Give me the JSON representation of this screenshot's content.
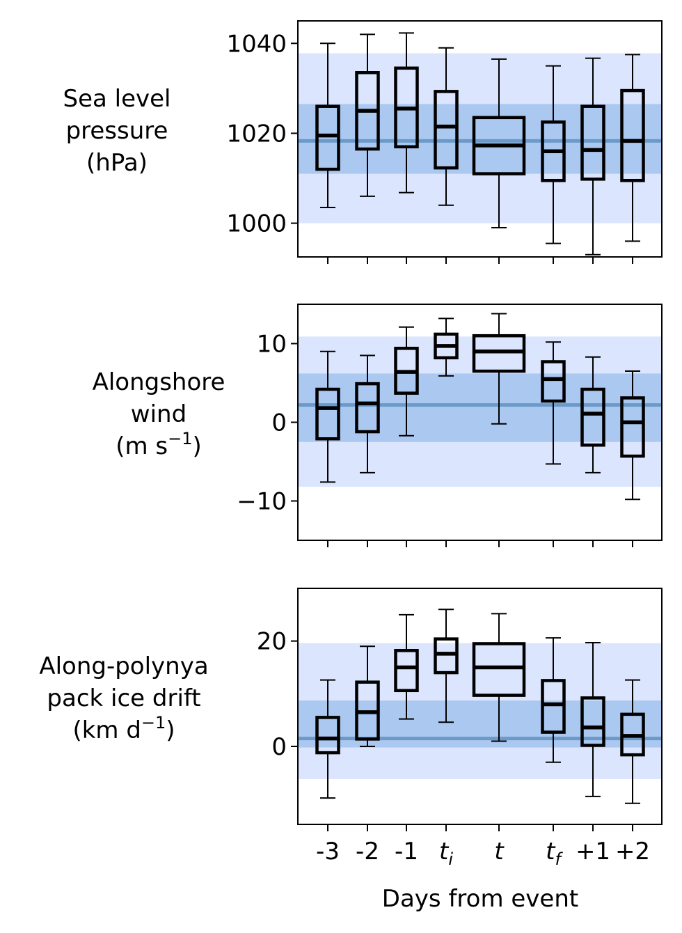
{
  "figure": {
    "xlabel": "Days from event",
    "categories": [
      "-3",
      "-2",
      "-1",
      "t_i",
      "t",
      "t_f",
      "+1",
      "+2"
    ],
    "category_labels": [
      {
        "main": "-3",
        "sub": ""
      },
      {
        "main": "-2",
        "sub": ""
      },
      {
        "main": "-1",
        "sub": ""
      },
      {
        "main": "t",
        "sub": "i"
      },
      {
        "main": "t",
        "sub": ""
      },
      {
        "main": "t",
        "sub": "f"
      },
      {
        "main": "+1",
        "sub": ""
      },
      {
        "main": "+2",
        "sub": ""
      }
    ],
    "colors": {
      "outer_band": "#dbe5fd",
      "inner_band": "#abc8f0",
      "median_line": "#6b9ac8",
      "box": "#000000"
    }
  },
  "chart_data": [
    {
      "type": "box",
      "ylabel_lines": [
        {
          "text": "Sea level",
          "sup": ""
        },
        {
          "text": "pressure",
          "sup": ""
        },
        {
          "text": "(hPa)",
          "sup": ""
        }
      ],
      "ylim": [
        992.5,
        1045
      ],
      "yticks": [
        1000,
        1020,
        1040
      ],
      "ytick_labels": [
        "1000",
        "1020",
        "1040"
      ],
      "climatology": {
        "outer": [
          1000,
          1037.8
        ],
        "inner": [
          1011,
          1026.5
        ],
        "median": 1018.3
      },
      "boxes": [
        {
          "category": "-3",
          "whislo": 1003.5,
          "q1": 1012,
          "med": 1019.5,
          "q3": 1026,
          "whishi": 1040
        },
        {
          "category": "-2",
          "whislo": 1006,
          "q1": 1016.5,
          "med": 1025,
          "q3": 1033.5,
          "whishi": 1042
        },
        {
          "category": "-1",
          "whislo": 1006.8,
          "q1": 1017,
          "med": 1025.5,
          "q3": 1034.5,
          "whishi": 1042.3
        },
        {
          "category": "t_i",
          "whislo": 1004,
          "q1": 1012.3,
          "med": 1021.5,
          "q3": 1029.3,
          "whishi": 1039
        },
        {
          "category": "t",
          "whislo": 999,
          "q1": 1011,
          "med": 1017.3,
          "q3": 1023.5,
          "whishi": 1036.5
        },
        {
          "category": "t_f",
          "whislo": 995.5,
          "q1": 1009.5,
          "med": 1016,
          "q3": 1022.5,
          "whishi": 1035
        },
        {
          "category": "+1",
          "whislo": 993,
          "q1": 1009.8,
          "med": 1016.3,
          "q3": 1026,
          "whishi": 1036.7
        },
        {
          "category": "+2",
          "whislo": 996,
          "q1": 1009.5,
          "med": 1018.3,
          "q3": 1029.5,
          "whishi": 1037.5
        }
      ]
    },
    {
      "type": "box",
      "ylabel_lines": [
        {
          "text": "Alongshore",
          "sup": ""
        },
        {
          "text": "wind",
          "sup": ""
        },
        {
          "text": "(m s",
          "sup": "−1",
          "tail": ")"
        }
      ],
      "ylim": [
        -15,
        15
      ],
      "yticks": [
        -10,
        0,
        10
      ],
      "ytick_labels": [
        "−10",
        "0",
        "10"
      ],
      "climatology": {
        "outer": [
          -8.2,
          10.9
        ],
        "inner": [
          -2.5,
          6.2
        ],
        "median": 2.2
      },
      "boxes": [
        {
          "category": "-3",
          "whislo": -7.6,
          "q1": -2.1,
          "med": 1.8,
          "q3": 4.2,
          "whishi": 9.0
        },
        {
          "category": "-2",
          "whislo": -6.4,
          "q1": -1.2,
          "med": 2.4,
          "q3": 4.9,
          "whishi": 8.5
        },
        {
          "category": "-1",
          "whislo": -1.7,
          "q1": 3.7,
          "med": 6.4,
          "q3": 9.4,
          "whishi": 12.1
        },
        {
          "category": "t_i",
          "whislo": 5.9,
          "q1": 8.2,
          "med": 9.7,
          "q3": 11.2,
          "whishi": 13.2
        },
        {
          "category": "t",
          "whislo": -0.2,
          "q1": 6.5,
          "med": 9.0,
          "q3": 11.0,
          "whishi": 13.8
        },
        {
          "category": "t_f",
          "whislo": -5.3,
          "q1": 2.7,
          "med": 5.5,
          "q3": 7.7,
          "whishi": 10.2
        },
        {
          "category": "+1",
          "whislo": -6.4,
          "q1": -2.9,
          "med": 1.1,
          "q3": 4.2,
          "whishi": 8.3
        },
        {
          "category": "+2",
          "whislo": -9.8,
          "q1": -4.3,
          "med": 0.0,
          "q3": 3.1,
          "whishi": 6.5
        }
      ]
    },
    {
      "type": "box",
      "ylabel_lines": [
        {
          "text": "Along-polynya",
          "sup": ""
        },
        {
          "text": "pack ice drift",
          "sup": ""
        },
        {
          "text": "(km d",
          "sup": "−1",
          "tail": ")"
        }
      ],
      "ylim": [
        -14.8,
        30
      ],
      "yticks": [
        0,
        20
      ],
      "ytick_labels": [
        "0",
        "20"
      ],
      "climatology": {
        "outer": [
          -6.2,
          19.6
        ],
        "inner": [
          -0.2,
          8.7
        ],
        "median": 1.5
      },
      "boxes": [
        {
          "category": "-3",
          "whislo": -9.8,
          "q1": -1.2,
          "med": 1.5,
          "q3": 5.5,
          "whishi": 12.6
        },
        {
          "category": "-2",
          "whislo": 0.0,
          "q1": 1.4,
          "med": 6.5,
          "q3": 12.2,
          "whishi": 19.0
        },
        {
          "category": "-1",
          "whislo": 5.2,
          "q1": 10.6,
          "med": 15.0,
          "q3": 18.2,
          "whishi": 25.0
        },
        {
          "category": "t_i",
          "whislo": 4.6,
          "q1": 14.0,
          "med": 17.6,
          "q3": 20.4,
          "whishi": 26.0
        },
        {
          "category": "t",
          "whislo": 1.0,
          "q1": 9.7,
          "med": 15.0,
          "q3": 19.5,
          "whishi": 25.2
        },
        {
          "category": "t_f",
          "whislo": -3.0,
          "q1": 2.7,
          "med": 8.0,
          "q3": 12.5,
          "whishi": 20.6
        },
        {
          "category": "+1",
          "whislo": -9.5,
          "q1": 0.2,
          "med": 3.6,
          "q3": 9.2,
          "whishi": 19.7
        },
        {
          "category": "+2",
          "whislo": -10.8,
          "q1": -1.6,
          "med": 2.0,
          "q3": 6.1,
          "whishi": 12.6
        }
      ]
    }
  ]
}
